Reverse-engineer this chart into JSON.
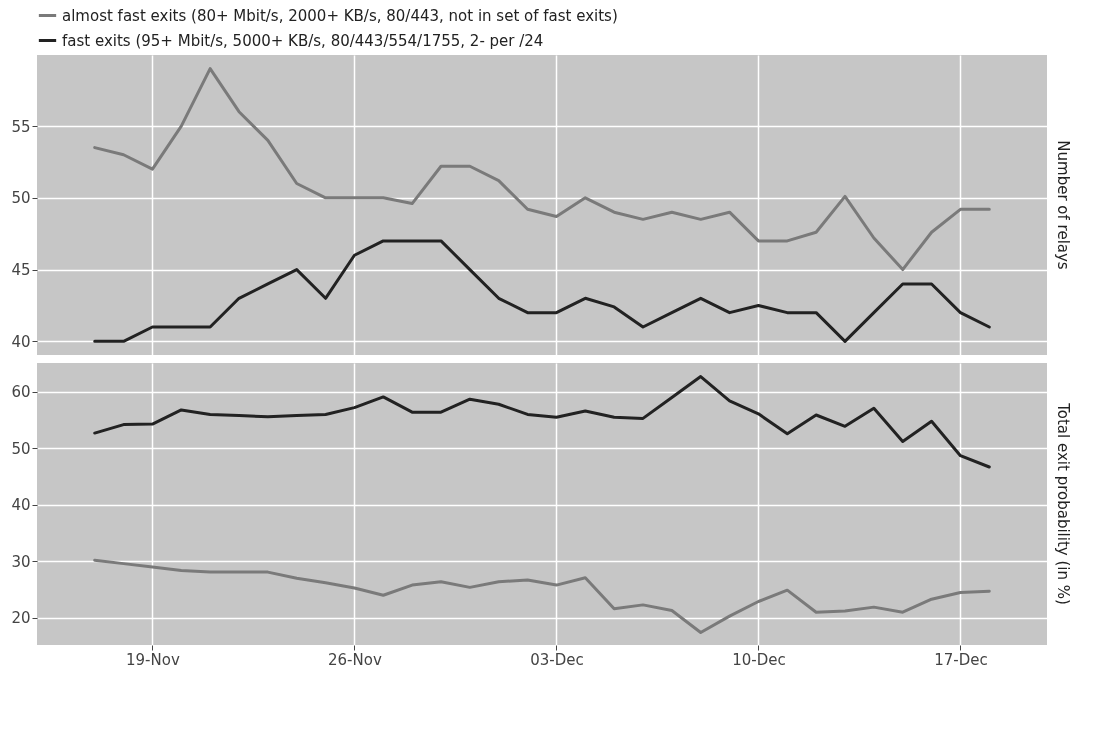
{
  "chart_data": [
    {
      "type": "line",
      "ylabel": "Number of relays",
      "legend": "top",
      "tick_labels": "y",
      "grid": true,
      "line_style": "solid",
      "x": [
        "--11-17",
        "--11-18",
        "--11-19",
        "--11-20",
        "--11-21",
        "--11-22",
        "--11-23",
        "--11-24",
        "--11-25",
        "--11-26",
        "--11-27",
        "--11-28",
        "--11-29",
        "--11-30",
        "--12-01",
        "--12-02",
        "--12-03",
        "--12-04",
        "--12-05",
        "--12-06",
        "--12-07",
        "--12-08",
        "--12-09",
        "--12-10",
        "--12-11",
        "--12-12",
        "--12-13",
        "--12-14",
        "--12-15",
        "--12-16",
        "--12-17",
        "--12-18"
      ],
      "xlim": [
        "--11-15",
        "--12-20"
      ],
      "xticks": [
        {
          "value": "--11-19",
          "label": "19-Nov"
        },
        {
          "value": "--11-26",
          "label": "26-Nov"
        },
        {
          "value": "--12-03",
          "label": "03-Dec"
        },
        {
          "value": "--12-10",
          "label": "10-Dec"
        },
        {
          "value": "--12-17",
          "label": "17-Dec"
        }
      ],
      "ylim": [
        39.05,
        59.95
      ],
      "yticks": [
        40,
        45,
        50,
        55
      ],
      "series": [
        {
          "name": "almost fast exits (80+ Mbit/s, 2000+ KB/s, 80/443, not in set of fast exits)",
          "color": "#7a7a7a",
          "values": [
            53.5,
            53,
            52,
            55,
            59,
            56,
            54,
            51,
            50,
            50,
            50,
            49.6,
            52.2,
            52.2,
            51.2,
            49.2,
            48.7,
            50,
            49,
            48.5,
            49,
            48.5,
            49,
            47,
            47,
            47.6,
            50.1,
            47.2,
            45,
            47.6,
            49.2,
            49.2
          ]
        },
        {
          "name": "fast exits (95+ Mbit/s, 5000+ KB/s, 80/443/554/1755, 2- per /24",
          "color": "#222222",
          "values": [
            40,
            40,
            41,
            41,
            41,
            43,
            44,
            45,
            43,
            46,
            47,
            47,
            47,
            45,
            43,
            42,
            42,
            43,
            42.4,
            41,
            42,
            43,
            42,
            42.5,
            42,
            42,
            40,
            42,
            44,
            44,
            42,
            41
          ]
        }
      ]
    },
    {
      "type": "line",
      "ylabel": "Total exit probability (in %)",
      "grid": true,
      "line_style": "solid",
      "x": [
        "--11-17",
        "--11-18",
        "--11-19",
        "--11-20",
        "--11-21",
        "--11-22",
        "--11-23",
        "--11-24",
        "--11-25",
        "--11-26",
        "--11-27",
        "--11-28",
        "--11-29",
        "--11-30",
        "--12-01",
        "--12-02",
        "--12-03",
        "--12-04",
        "--12-05",
        "--12-06",
        "--12-07",
        "--12-08",
        "--12-09",
        "--12-10",
        "--12-11",
        "--12-12",
        "--12-13",
        "--12-14",
        "--12-15",
        "--12-16",
        "--12-17",
        "--12-18"
      ],
      "xlim": [
        "--11-15",
        "--12-20"
      ],
      "xticks": [
        {
          "value": "--11-19",
          "label": "19-Nov"
        },
        {
          "value": "--11-26",
          "label": "26-Nov"
        },
        {
          "value": "--12-03",
          "label": "03-Dec"
        },
        {
          "value": "--12-10",
          "label": "10-Dec"
        },
        {
          "value": "--12-17",
          "label": "17-Dec"
        }
      ],
      "ylim": [
        15.2,
        65.1
      ],
      "yticks": [
        20,
        30,
        40,
        50,
        60
      ],
      "series": [
        {
          "color": "#7a7a7a",
          "values": [
            30.2,
            29.6,
            29,
            28.4,
            28.1,
            28.1,
            28.1,
            27,
            26.2,
            25.3,
            24,
            25.8,
            26.4,
            25.4,
            26.4,
            26.7,
            25.8,
            27.1,
            21.6,
            22.3,
            21.3,
            17.4,
            20.3,
            22.9,
            24.9,
            21,
            21.2,
            21.9,
            21,
            23.3,
            24.5,
            24.7
          ]
        },
        {
          "color": "#222222",
          "values": [
            52.7,
            54.2,
            54.3,
            56.8,
            56,
            55.8,
            55.6,
            55.8,
            56,
            57.2,
            59.1,
            56.4,
            56.4,
            58.7,
            57.8,
            56,
            55.5,
            56.6,
            55.5,
            55.3,
            59,
            62.7,
            58.4,
            56.1,
            52.6,
            55.9,
            53.9,
            57.1,
            51.2,
            54.8,
            48.7,
            46.7
          ]
        }
      ]
    }
  ]
}
